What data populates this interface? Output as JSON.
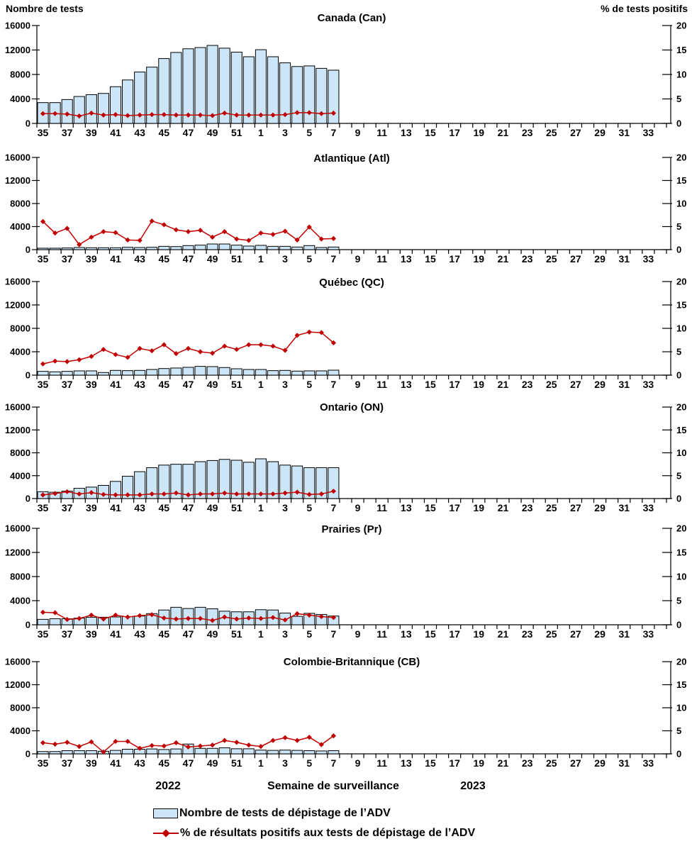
{
  "labels": {
    "left_axis_title": "Nombre de tests",
    "right_axis_title": "% de tests positifs",
    "x_axis_title": "Semaine de surveillance",
    "year_left": "2022",
    "year_right": "2023"
  },
  "legend": {
    "bar_label": "Nombre de tests de dépistage de l’ADV",
    "line_label": "% de résultats positifs aux tests de dépistage de l’ADV"
  },
  "colors": {
    "bar_fill": "#CDE6F7",
    "bar_border": "#000000",
    "line": "#C00000",
    "axis": "#000000",
    "text": "#000000"
  },
  "chart_data": {
    "type": "small_multiples_bar_line",
    "x_axis": {
      "title": "Semaine de surveillance",
      "weeks_with_data": [
        35,
        36,
        37,
        38,
        39,
        40,
        41,
        42,
        43,
        44,
        45,
        46,
        47,
        48,
        49,
        50,
        51,
        52,
        1,
        2,
        3,
        4,
        5,
        6,
        7
      ],
      "axis_week_start": 35,
      "axis_week_wrap": 52,
      "axis_week_end": 34,
      "tick_labels": [
        "35",
        "37",
        "39",
        "41",
        "43",
        "45",
        "47",
        "49",
        "51",
        "1",
        "3",
        "5",
        "7",
        "9",
        "11",
        "13",
        "15",
        "17",
        "19",
        "21",
        "23",
        "25",
        "27",
        "29",
        "31",
        "33"
      ],
      "year_left": "2022",
      "year_right": "2023"
    },
    "left_axis": {
      "label": "Nombre de tests",
      "ticks": [
        0,
        4000,
        8000,
        12000,
        16000
      ],
      "min": 0,
      "max": 16000
    },
    "right_axis": {
      "label": "% de tests positifs",
      "ticks": [
        0,
        5,
        10,
        15,
        20
      ],
      "min": 0,
      "max": 20
    },
    "grid": false,
    "legend_position": "bottom",
    "panels": [
      {
        "title": "Canada (Can)",
        "slug": "canada-can",
        "tests": [
          3400,
          3400,
          3900,
          4400,
          4700,
          4900,
          6000,
          7100,
          8400,
          9200,
          10600,
          11600,
          12200,
          12400,
          12750,
          12300,
          11650,
          10900,
          12050,
          10900,
          9900,
          9300,
          9400,
          9000,
          8700
        ],
        "pct_positive": [
          2.0,
          2.0,
          1.9,
          1.5,
          2.1,
          1.7,
          1.8,
          1.6,
          1.7,
          1.8,
          1.8,
          1.7,
          1.7,
          1.7,
          1.6,
          2.1,
          1.7,
          1.7,
          1.7,
          1.7,
          1.8,
          2.2,
          2.2,
          2.0,
          2.1
        ]
      },
      {
        "title": "Atlantique (Atl)",
        "slug": "atlantique-atl",
        "tests": [
          250,
          250,
          290,
          370,
          330,
          330,
          330,
          410,
          370,
          410,
          570,
          530,
          700,
          780,
          980,
          980,
          780,
          620,
          740,
          570,
          570,
          450,
          700,
          370,
          450
        ],
        "pct_positive": [
          6.1,
          3.6,
          4.6,
          1.1,
          2.7,
          3.9,
          3.7,
          2.1,
          2.0,
          6.2,
          5.4,
          4.3,
          3.9,
          4.2,
          2.7,
          3.9,
          2.3,
          2.0,
          3.6,
          3.3,
          4.0,
          2.1,
          4.9,
          2.3,
          2.4
        ]
      },
      {
        "title": "Québec (QC)",
        "slug": "quebec-qc",
        "tests": [
          650,
          570,
          650,
          730,
          730,
          450,
          810,
          770,
          810,
          970,
          1130,
          1220,
          1340,
          1500,
          1460,
          1300,
          1090,
          970,
          970,
          770,
          810,
          690,
          730,
          730,
          850
        ],
        "pct_positive": [
          2.4,
          3.0,
          2.9,
          3.3,
          4.0,
          5.5,
          4.4,
          3.8,
          5.7,
          5.2,
          6.5,
          4.6,
          5.7,
          5.0,
          4.7,
          6.2,
          5.5,
          6.5,
          6.5,
          6.2,
          5.3,
          8.5,
          9.2,
          9.1,
          6.9
        ]
      },
      {
        "title": "Ontario (ON)",
        "slug": "ontario-on",
        "tests": [
          1200,
          1100,
          1300,
          1800,
          2000,
          2300,
          3000,
          3900,
          4700,
          5400,
          5850,
          6000,
          6000,
          6450,
          6650,
          6850,
          6700,
          6350,
          6950,
          6450,
          5850,
          5700,
          5400,
          5400,
          5400
        ],
        "pct_positive": [
          0.8,
          1.1,
          1.5,
          1.0,
          1.3,
          0.9,
          0.8,
          0.8,
          0.8,
          1.0,
          1.0,
          1.2,
          0.8,
          1.0,
          1.0,
          1.2,
          1.0,
          1.0,
          1.0,
          1.0,
          1.2,
          1.4,
          0.9,
          1.0,
          1.6
        ]
      },
      {
        "title": "Prairies (Pr)",
        "slug": "prairies-pr",
        "tests": [
          900,
          1000,
          1000,
          1100,
          1250,
          1250,
          1300,
          1350,
          1450,
          1850,
          2450,
          2900,
          2700,
          2900,
          2650,
          2250,
          2150,
          2150,
          2500,
          2450,
          1950,
          1400,
          1900,
          1700,
          1450
        ],
        "pct_positive": [
          2.6,
          2.5,
          1.1,
          1.3,
          2.0,
          1.2,
          2.0,
          1.6,
          1.9,
          2.1,
          1.4,
          1.2,
          1.3,
          1.3,
          0.9,
          1.6,
          1.2,
          1.4,
          1.3,
          1.5,
          1.0,
          2.3,
          2.0,
          1.7,
          1.5
        ]
      },
      {
        "title": "Colombie-Britannique (CB)",
        "slug": "colombie-britannique-cb",
        "tests": [
          400,
          400,
          550,
          550,
          550,
          450,
          600,
          800,
          800,
          850,
          750,
          850,
          1700,
          950,
          950,
          1050,
          880,
          880,
          650,
          600,
          650,
          600,
          550,
          500,
          550
        ],
        "pct_positive": [
          2.4,
          2.1,
          2.5,
          1.6,
          2.6,
          0.4,
          2.7,
          2.7,
          1.2,
          1.8,
          1.7,
          2.4,
          1.5,
          1.7,
          1.9,
          2.9,
          2.5,
          1.9,
          1.6,
          2.9,
          3.5,
          2.9,
          3.6,
          2.0,
          3.9
        ]
      }
    ]
  }
}
